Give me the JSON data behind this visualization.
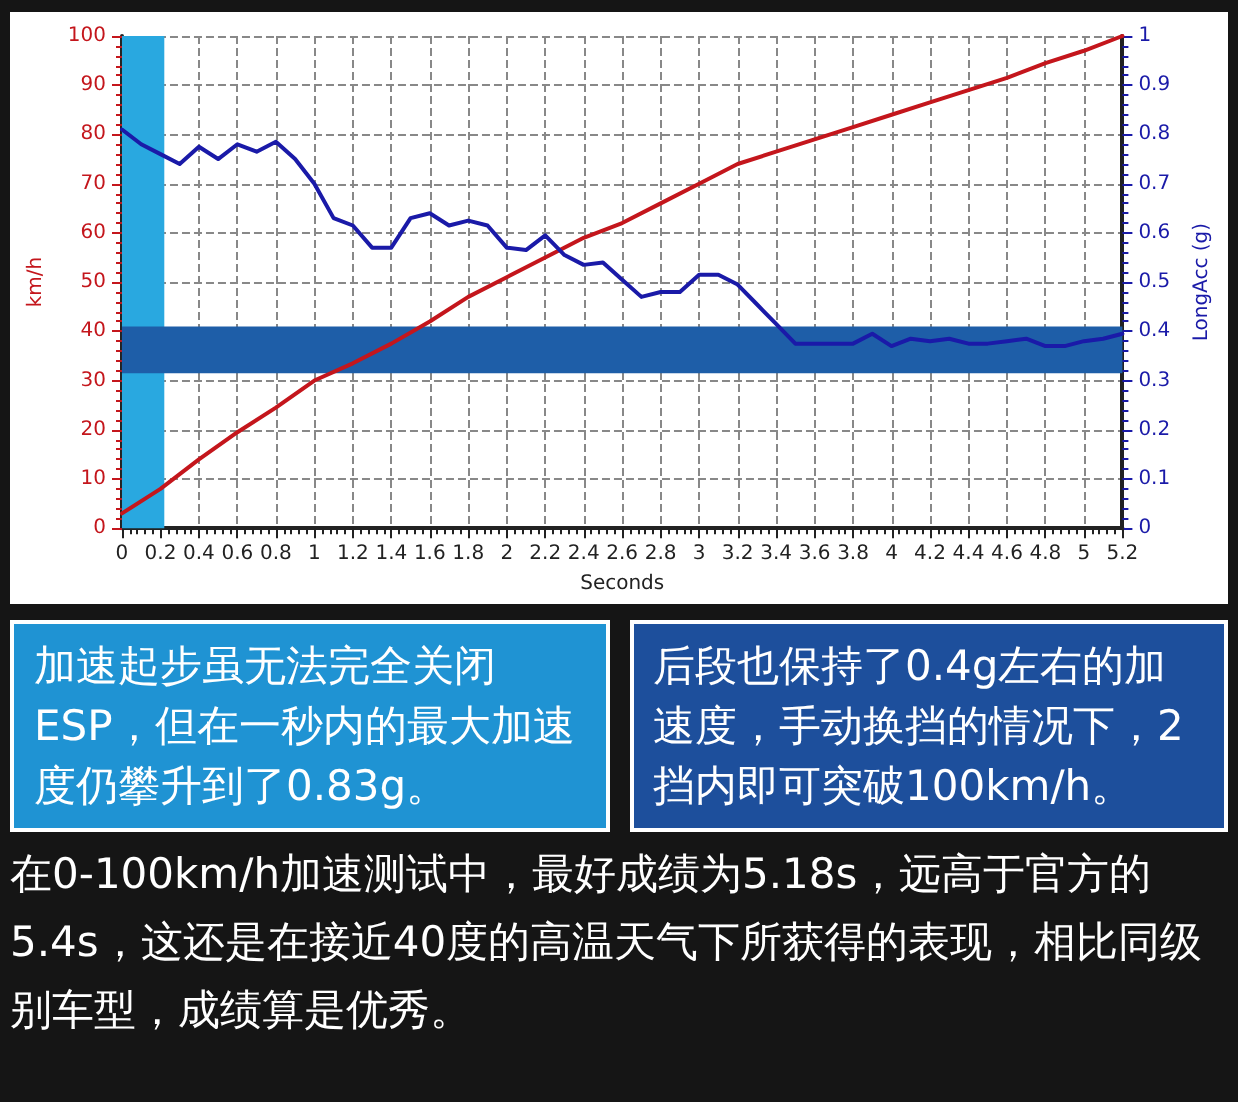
{
  "chart_data": {
    "type": "line",
    "xlabel": "Seconds",
    "ylabel": "km/h",
    "y2label": "LongAcc (g)",
    "xlim": [
      0,
      5.2
    ],
    "xticks": [
      0,
      0.2,
      0.4,
      0.6,
      0.8,
      1,
      1.2,
      1.4,
      1.6,
      1.8,
      2,
      2.2,
      2.4,
      2.6,
      2.8,
      3,
      3.2,
      3.4,
      3.6,
      3.8,
      4,
      4.2,
      4.4,
      4.6,
      4.8,
      5,
      5.2
    ],
    "ylim": [
      0,
      100
    ],
    "yticks": [
      0,
      10,
      20,
      30,
      40,
      50,
      60,
      70,
      80,
      90,
      100
    ],
    "y2lim": [
      0,
      1
    ],
    "y2ticks": [
      0,
      0.1,
      0.2,
      0.3,
      0.4,
      0.5,
      0.6,
      0.7,
      0.8,
      0.9,
      1
    ],
    "grid": true,
    "marker": "none",
    "line_style": "solid",
    "series": [
      {
        "color": "#c4161c",
        "x": [
          0,
          0.2,
          0.4,
          0.6,
          0.8,
          1,
          1.2,
          1.4,
          1.6,
          1.8,
          2,
          2.2,
          2.4,
          2.6,
          2.8,
          3,
          3.2,
          3.4,
          3.6,
          3.8,
          4,
          4.2,
          4.4,
          4.6,
          4.8,
          5,
          5.2
        ],
        "values": [
          3,
          8,
          14,
          19.5,
          24.5,
          30,
          33.5,
          37.5,
          42,
          47,
          51,
          55,
          59,
          62,
          66,
          70,
          74,
          76.5,
          79,
          81.5,
          84,
          86.5,
          89,
          91.5,
          94.5,
          97,
          100
        ]
      },
      {
        "color": "#1a1aa8",
        "axis": "y2",
        "x": [
          0,
          0.1,
          0.2,
          0.3,
          0.4,
          0.5,
          0.6,
          0.7,
          0.8,
          0.9,
          1,
          1.1,
          1.2,
          1.3,
          1.4,
          1.5,
          1.6,
          1.7,
          1.8,
          1.9,
          2,
          2.1,
          2.2,
          2.3,
          2.4,
          2.5,
          2.6,
          2.7,
          2.8,
          2.9,
          3,
          3.1,
          3.2,
          3.3,
          3.4,
          3.5,
          3.6,
          3.8,
          3.9,
          4,
          4.1,
          4.2,
          4.3,
          4.4,
          4.5,
          4.6,
          4.7,
          4.8,
          4.9,
          5,
          5.1,
          5.2
        ],
        "values": [
          0.81,
          0.78,
          0.76,
          0.74,
          0.775,
          0.75,
          0.78,
          0.765,
          0.785,
          0.75,
          0.7,
          0.63,
          0.615,
          0.57,
          0.57,
          0.63,
          0.64,
          0.615,
          0.625,
          0.615,
          0.57,
          0.565,
          0.595,
          0.555,
          0.535,
          0.54,
          0.505,
          0.47,
          0.48,
          0.48,
          0.515,
          0.515,
          0.495,
          0.455,
          0.415,
          0.375,
          0.375,
          0.375,
          0.395,
          0.37,
          0.385,
          0.38,
          0.385,
          0.375,
          0.375,
          0.38,
          0.385,
          0.37,
          0.37,
          0.38,
          0.385,
          0.395
        ]
      }
    ],
    "bands": [
      {
        "axis": "x",
        "from": 0,
        "to": 0.22,
        "color": "#29a8e0"
      },
      {
        "axis": "y2",
        "from": 0.315,
        "to": 0.41,
        "color": "#1e5ea8"
      }
    ],
    "annotations": [
      "加速起步虽无法完全关闭ESP，但在一秒内的最大加速度仍攀升到了0.83g。",
      "后段也保持了0.4g左右的加速度，手动换挡的情况下，2挡内即可突破100km/h。",
      "在0-100km/h加速测试中，最好成绩为5.18s，远高于官方的5.4s，这还是在接近40度的高温天气下所获得的表现，相比同级别车型，成绩算是优秀。"
    ]
  }
}
